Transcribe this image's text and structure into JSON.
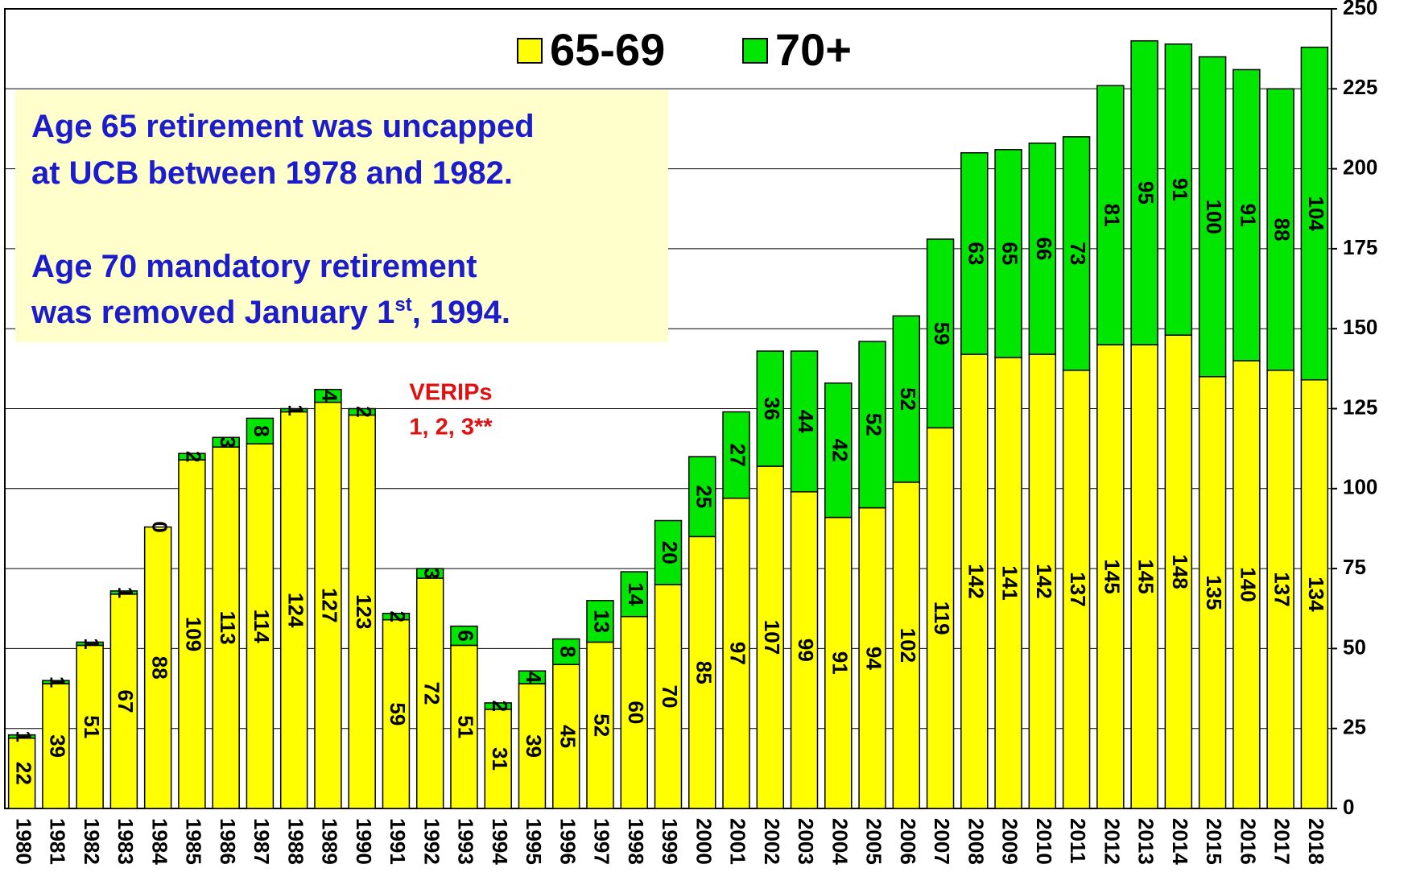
{
  "chart_data": {
    "type": "stacked-bar",
    "categories": [
      "1980",
      "1981",
      "1982",
      "1983",
      "1984",
      "1985",
      "1986",
      "1987",
      "1988",
      "1989",
      "1990",
      "1991",
      "1992",
      "1993",
      "1994",
      "1995",
      "1996",
      "1997",
      "1998",
      "1999",
      "2000",
      "2001",
      "2002",
      "2003",
      "2004",
      "2005",
      "2006",
      "2007",
      "2008",
      "2009",
      "2010",
      "2011",
      "2012",
      "2013",
      "2014",
      "2015",
      "2016",
      "2017",
      "2018"
    ],
    "series": [
      {
        "name": "65-69",
        "color": "#ffff00",
        "values": [
          22,
          39,
          51,
          67,
          88,
          109,
          113,
          114,
          124,
          127,
          123,
          59,
          72,
          51,
          31,
          39,
          45,
          52,
          60,
          70,
          85,
          97,
          107,
          99,
          91,
          94,
          102,
          119,
          142,
          141,
          142,
          137,
          145,
          145,
          148,
          135,
          140,
          137,
          134
        ]
      },
      {
        "name": "70+",
        "color": "#00e600",
        "values": [
          1,
          1,
          1,
          1,
          0,
          2,
          3,
          8,
          1,
          4,
          2,
          2,
          3,
          6,
          2,
          4,
          8,
          13,
          14,
          20,
          25,
          27,
          36,
          44,
          42,
          52,
          52,
          59,
          63,
          65,
          66,
          73,
          81,
          95,
          91,
          100,
          91,
          88,
          104
        ]
      }
    ],
    "ylim": [
      0,
      250
    ],
    "yticks": [
      0,
      25,
      50,
      75,
      100,
      125,
      150,
      175,
      200,
      225,
      250
    ],
    "grid": true,
    "y_axis_side": "right",
    "annotations": {
      "note_lines": [
        "Age 65 retirement was uncapped",
        "at UCB between 1978 and 1982.",
        "Age 70 mandatory retirement"
      ],
      "note_last": {
        "before": "was removed January 1",
        "sup": "st",
        "after": ", 1994."
      },
      "verips": [
        "VERIPs",
        "1, 2, 3**"
      ]
    }
  }
}
